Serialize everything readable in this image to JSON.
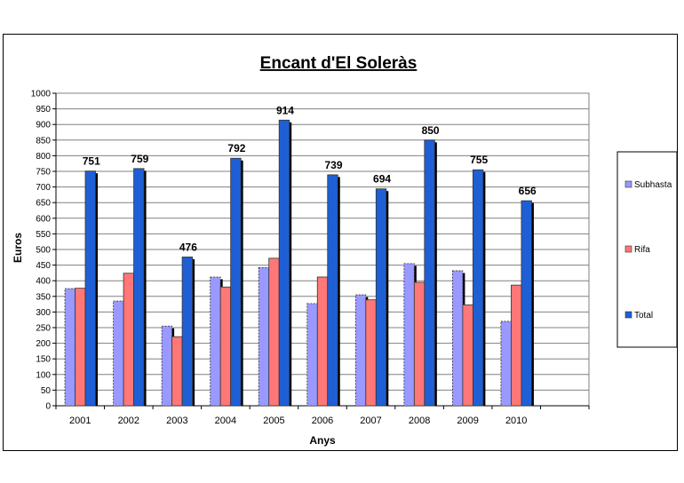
{
  "chart_data": {
    "type": "bar",
    "title": "Encant d'El Soleràs",
    "xlabel": "Anys",
    "ylabel": "Euros",
    "ylim": [
      0,
      1000
    ],
    "ytick_step": 50,
    "grid": true,
    "legend_position": "right",
    "categories": [
      "2001",
      "2002",
      "2003",
      "2004",
      "2005",
      "2006",
      "2007",
      "2008",
      "2009",
      "2010"
    ],
    "series": [
      {
        "name": "Subhasta",
        "color": "#9999ff",
        "values": [
          375,
          335,
          255,
          412,
          442,
          327,
          355,
          455,
          432,
          270
        ]
      },
      {
        "name": "Rifa",
        "color": "#ff7777",
        "values": [
          376,
          424,
          221,
          380,
          472,
          412,
          339,
          395,
          323,
          386
        ]
      },
      {
        "name": "Total",
        "color": "#1f5fd6",
        "values": [
          751,
          759,
          476,
          792,
          914,
          739,
          694,
          850,
          755,
          656
        ],
        "labels": [
          "751",
          "759",
          "476",
          "792",
          "914",
          "739",
          "694",
          "850",
          "755",
          "656"
        ]
      }
    ]
  }
}
